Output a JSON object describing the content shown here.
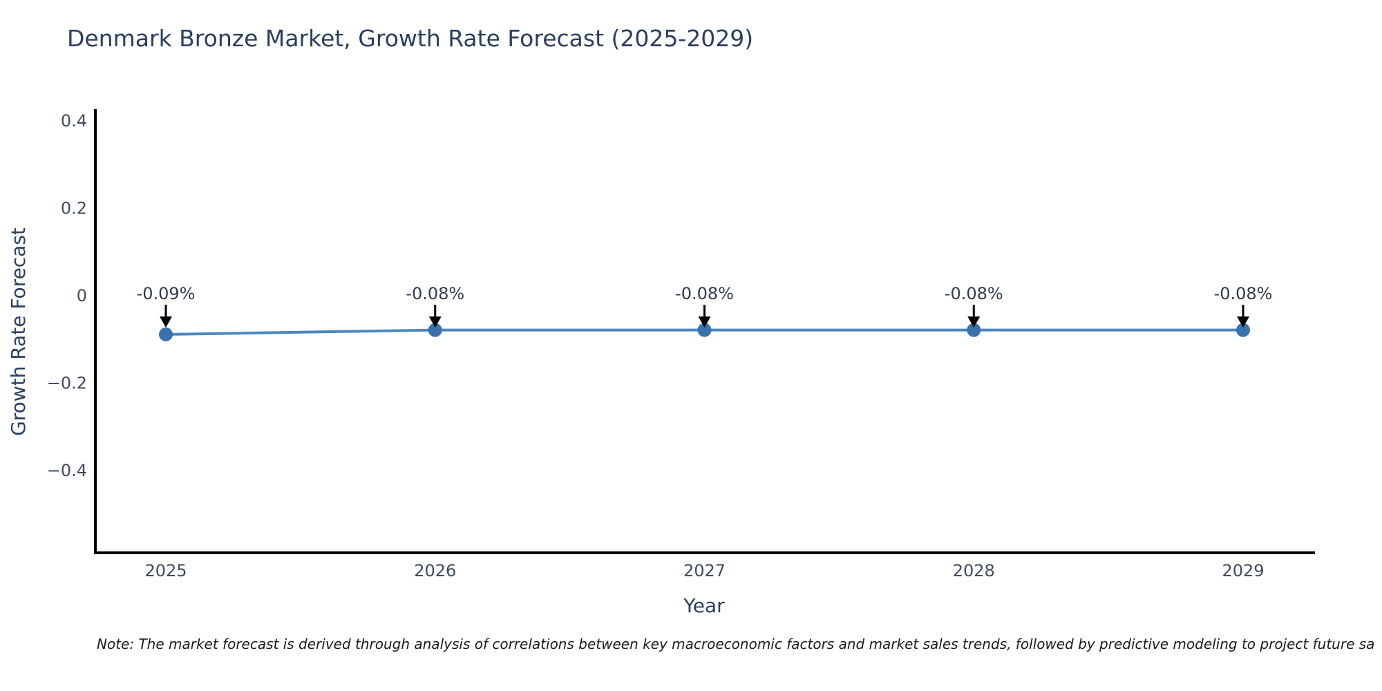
{
  "note": "Note: The market forecast is derived through analysis of correlations between key macroeconomic factors and market sales trends, followed by predictive modeling to project future sa",
  "chart_data": {
    "type": "line",
    "title": "Denmark Bronze Market, Growth Rate Forecast (2025-2029)",
    "xlabel": "Year",
    "ylabel": "Growth Rate Forecast",
    "x": [
      2025,
      2026,
      2027,
      2028,
      2029
    ],
    "series": [
      {
        "name": "Growth Rate Forecast",
        "values": [
          -0.09,
          -0.08,
          -0.08,
          -0.08,
          -0.08
        ]
      }
    ],
    "annotations": [
      "-0.09%",
      "-0.08%",
      "-0.08%",
      "-0.08%",
      "-0.08%"
    ],
    "xtick_labels": [
      "2025",
      "2026",
      "2027",
      "2028",
      "2029"
    ],
    "ytick_values": [
      0.4,
      0.2,
      0,
      -0.2,
      -0.4
    ],
    "ytick_labels": [
      "0.4",
      "0.2",
      "0",
      "−0.2",
      "−0.4"
    ],
    "ylim": [
      -0.59,
      0.42
    ],
    "grid": false,
    "legend": "none",
    "colors": {
      "line": "#4d87c0",
      "marker": "#3873ae",
      "arrow": "#000000",
      "axis": "#000000",
      "title": "#2a3f5f",
      "axis_title": "#2a3f5f",
      "tick": "#3e4a5f",
      "annotation_text": "#2f3b4e",
      "background": "#ffffff"
    }
  }
}
